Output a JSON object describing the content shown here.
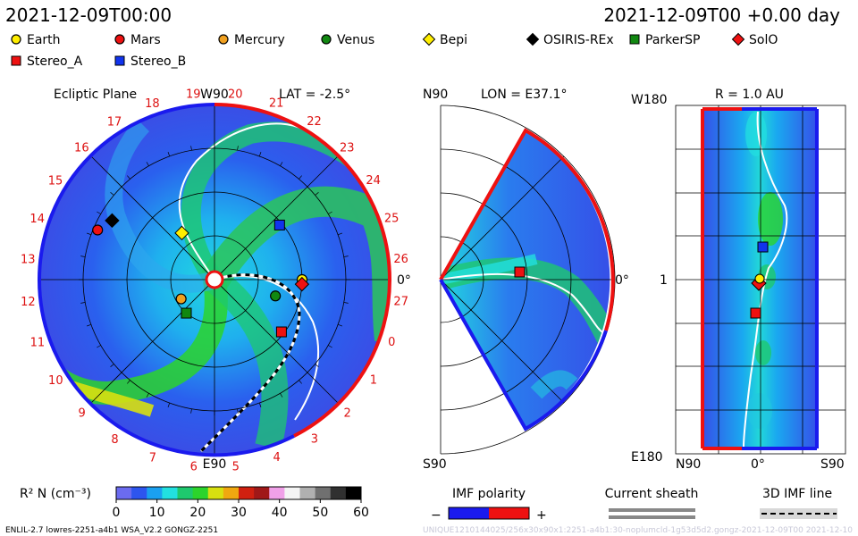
{
  "header": {
    "date_left": "2021-12-09T00:00",
    "date_right": "2021-12-09T00 +0.00 day"
  },
  "legend": {
    "bodies": [
      {
        "label": "Earth",
        "marker": "circle",
        "color": "#ffee00"
      },
      {
        "label": "Mars",
        "marker": "circle",
        "color": "#ee1111"
      },
      {
        "label": "Mercury",
        "marker": "circle",
        "color": "#f0a020"
      },
      {
        "label": "Venus",
        "marker": "circle",
        "color": "#118811"
      },
      {
        "label": "Bepi",
        "marker": "diamond",
        "color": "#ffee00"
      },
      {
        "label": "OSIRIS-REx",
        "marker": "diamond",
        "color": "#000000"
      },
      {
        "label": "ParkerSP",
        "marker": "square",
        "color": "#118811"
      },
      {
        "label": "SolO",
        "marker": "diamond",
        "color": "#ee1111"
      },
      {
        "label": "Stereo_A",
        "marker": "square",
        "color": "#ee1111"
      },
      {
        "label": "Stereo_B",
        "marker": "square",
        "color": "#1133ee"
      }
    ]
  },
  "panels": {
    "ecliptic": {
      "title": "Ecliptic Plane",
      "top_label": "W90",
      "lat_label": "LAT = -2.5°",
      "bottom_label": "E90",
      "right_label": "0°"
    },
    "meridional": {
      "lon_label": "LON = E37.1°",
      "top_label": "N90",
      "bottom_label": "S90",
      "right_label": "0°"
    },
    "radial": {
      "r_label": "R = 1.0 AU",
      "top_label": "W180",
      "bottom_label": "E180",
      "mid_label": "1",
      "x_labels": [
        "N90",
        "0°",
        "S90"
      ]
    }
  },
  "colorbar": {
    "label": "R² N (cm⁻³)",
    "ticks": [
      "0",
      "10",
      "20",
      "30",
      "40",
      "50",
      "60"
    ],
    "colors": [
      "#6b6bf0",
      "#2d55ee",
      "#1aa0f0",
      "#22e0e0",
      "#1ec86e",
      "#2cd42c",
      "#d8e010",
      "#f0a810",
      "#d02010",
      "#a01818",
      "#f0a0e8",
      "#f4f4f4",
      "#b0b0b0",
      "#707070",
      "#303030",
      "#000000"
    ]
  },
  "imf": {
    "title": "IMF polarity",
    "minus": "−",
    "plus": "+",
    "neg_color": "#1a1aee",
    "pos_color": "#ee1111"
  },
  "sheath": {
    "title": "Current sheath"
  },
  "imf3d": {
    "title": "3D IMF line"
  },
  "carrington_labels": [
    "19",
    "20",
    "21",
    "22",
    "23",
    "24",
    "25",
    "26",
    "27",
    "0",
    "1",
    "2",
    "3",
    "4",
    "5",
    "6",
    "7",
    "8",
    "9",
    "10",
    "11",
    "12",
    "13",
    "14",
    "15",
    "16",
    "17",
    "18"
  ],
  "footer": {
    "left": "ENLIL-2.7 lowres-2251-a4b1 WSA_V2.2 GONGZ-2251",
    "right": "UNIQUE1210144025/256x30x90x1:2251-a4b1:30-noplumcld-1g53d5d2.gongz-2021-12-09T00   2021-12-10"
  },
  "chart_data": [
    {
      "type": "heatmap",
      "title": "Ecliptic Plane",
      "subtitle": "LAT = -2.5°",
      "colorbar_range": [
        0,
        60
      ],
      "bodies": [
        {
          "name": "Earth",
          "azimuth_deg": 0,
          "r_au": 1.0
        },
        {
          "name": "SolO",
          "azimuth_deg": -3,
          "r_au": 1.0
        },
        {
          "name": "Stereo_A",
          "azimuth_deg": -38,
          "r_au": 0.97
        },
        {
          "name": "Stereo_B",
          "azimuth_deg": 40,
          "r_au": 0.97
        },
        {
          "name": "Venus",
          "azimuth_deg": -15,
          "r_au": 0.72
        },
        {
          "name": "Mercury",
          "azimuth_deg": 210,
          "r_au": 0.44
        },
        {
          "name": "ParkerSP",
          "azimuth_deg": 230,
          "r_au": 0.5
        },
        {
          "name": "Bepi",
          "azimuth_deg": 125,
          "r_au": 0.65
        },
        {
          "name": "Mars",
          "azimuth_deg": 157,
          "r_au": 1.45
        },
        {
          "name": "OSIRIS-REx",
          "azimuth_deg": 150,
          "r_au": 1.35
        }
      ]
    },
    {
      "type": "heatmap",
      "title": "",
      "subtitle": "LON = E37.1°",
      "colorbar_range": [
        0,
        60
      ],
      "bodies": [
        {
          "name": "Stereo_A",
          "latitude_deg": 0,
          "r_au": 0.97
        }
      ]
    },
    {
      "type": "heatmap",
      "title": "",
      "subtitle": "R = 1.0 AU",
      "colorbar_range": [
        0,
        60
      ],
      "bodies": [
        {
          "name": "Stereo_B",
          "longitude_deg": 40,
          "latitude_deg": 0
        },
        {
          "name": "Earth",
          "longitude_deg": 0,
          "latitude_deg": 0
        },
        {
          "name": "SolO",
          "longitude_deg": -3,
          "latitude_deg": 0
        },
        {
          "name": "Stereo_A",
          "longitude_deg": -38,
          "latitude_deg": 0
        }
      ]
    }
  ]
}
